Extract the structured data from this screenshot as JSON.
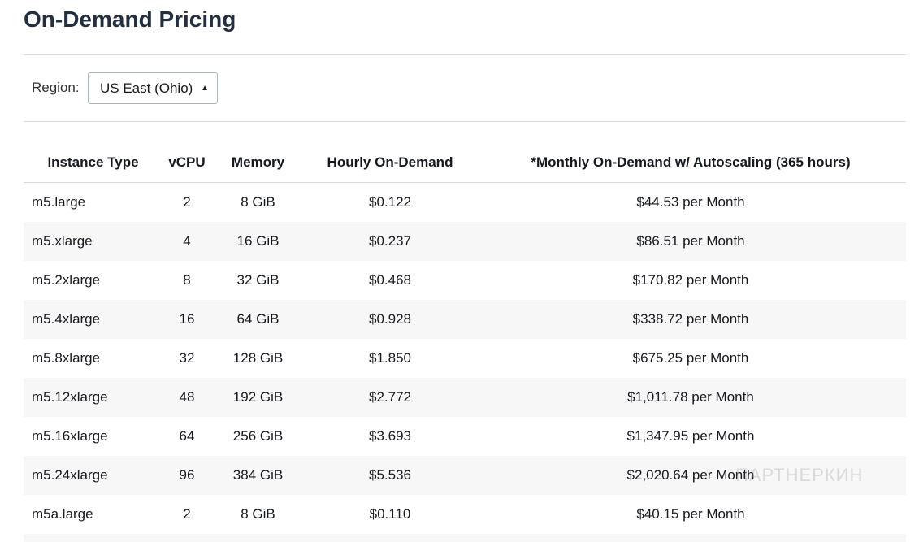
{
  "header": {
    "title": "On-Demand Pricing"
  },
  "region": {
    "label": "Region:",
    "selected": "US East (Ohio)"
  },
  "table": {
    "headers": [
      "Instance Type",
      "vCPU",
      "Memory",
      "Hourly On-Demand",
      "*Monthly On-Demand w/ Autoscaling (365 hours)"
    ],
    "rows": [
      [
        "m5.large",
        "2",
        "8 GiB",
        "$0.122",
        "$44.53 per Month"
      ],
      [
        "m5.xlarge",
        "4",
        "16 GiB",
        "$0.237",
        "$86.51 per Month"
      ],
      [
        "m5.2xlarge",
        "8",
        "32 GiB",
        "$0.468",
        "$170.82 per Month"
      ],
      [
        "m5.4xlarge",
        "16",
        "64 GiB",
        "$0.928",
        "$338.72 per Month"
      ],
      [
        "m5.8xlarge",
        "32",
        "128 GiB",
        "$1.850",
        "$675.25 per Month"
      ],
      [
        "m5.12xlarge",
        "48",
        "192 GiB",
        "$2.772",
        "$1,011.78 per Month"
      ],
      [
        "m5.16xlarge",
        "64",
        "256 GiB",
        "$3.693",
        "$1,347.95 per Month"
      ],
      [
        "m5.24xlarge",
        "96",
        "384 GiB",
        "$5.536",
        "$2,020.64 per Month"
      ],
      [
        "m5a.large",
        "2",
        "8 GiB",
        "$0.110",
        "$40.15 per Month"
      ]
    ]
  },
  "watermark": "ПАРТНЕРКИН"
}
